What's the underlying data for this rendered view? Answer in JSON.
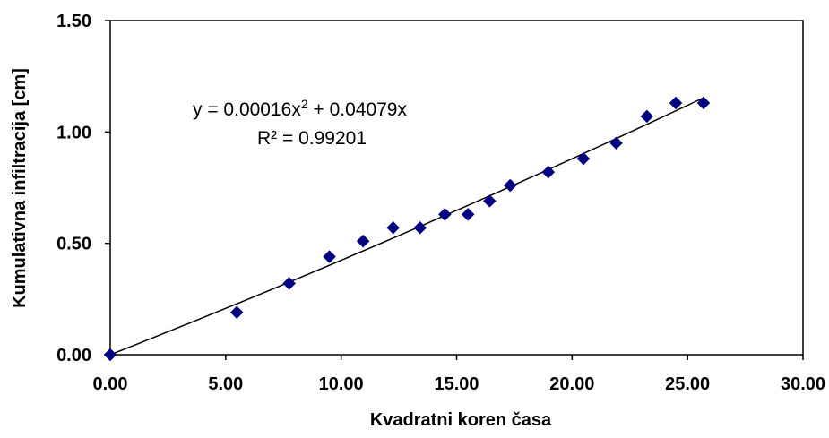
{
  "chart_data": {
    "type": "scatter",
    "xlabel": "Kvadratni koren časa",
    "ylabel": "Kumulativna infiltracija [cm]",
    "xlim": [
      0,
      30
    ],
    "ylim": [
      0,
      1.5
    ],
    "x_ticks": [
      "0.00",
      "5.00",
      "10.00",
      "15.00",
      "20.00",
      "25.00",
      "30.00"
    ],
    "y_ticks": [
      "0.00",
      "0.50",
      "1.00",
      "1.50"
    ],
    "series": [
      {
        "marker": "diamond",
        "color": "#000080",
        "points": [
          {
            "x": 0.0,
            "y": 0.0
          },
          {
            "x": 5.48,
            "y": 0.19
          },
          {
            "x": 7.75,
            "y": 0.32
          },
          {
            "x": 9.49,
            "y": 0.44
          },
          {
            "x": 10.95,
            "y": 0.51
          },
          {
            "x": 12.25,
            "y": 0.57
          },
          {
            "x": 13.42,
            "y": 0.57
          },
          {
            "x": 14.49,
            "y": 0.63
          },
          {
            "x": 15.49,
            "y": 0.63
          },
          {
            "x": 16.43,
            "y": 0.69
          },
          {
            "x": 17.32,
            "y": 0.76
          },
          {
            "x": 18.97,
            "y": 0.82
          },
          {
            "x": 20.49,
            "y": 0.88
          },
          {
            "x": 21.91,
            "y": 0.95
          },
          {
            "x": 23.24,
            "y": 1.07
          },
          {
            "x": 24.49,
            "y": 1.13
          },
          {
            "x": 25.69,
            "y": 1.13
          }
        ]
      }
    ],
    "trendline": {
      "type": "polynomial",
      "a": 0.00016,
      "b": 0.04079,
      "x_range": [
        0,
        25.69
      ],
      "color": "#000000"
    },
    "equation": {
      "prefix": "y = 0.00016x",
      "exponent": "2",
      "suffix": " + 0.04079x",
      "r_squared": "R² = 0.99201"
    },
    "grid": false,
    "legend": "none"
  }
}
